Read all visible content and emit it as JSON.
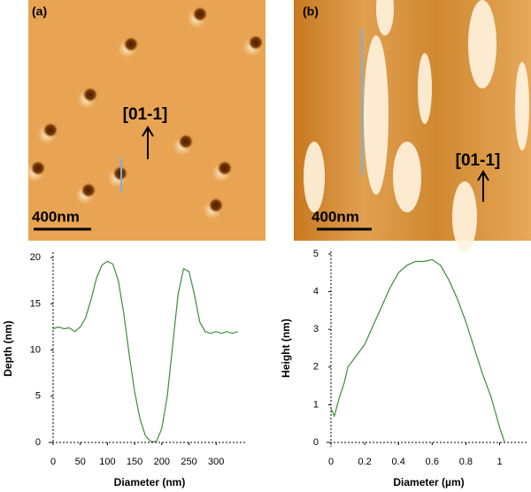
{
  "images": [
    {
      "label": "(a)",
      "direction": "[01-1]",
      "scale_bar": "400nm"
    },
    {
      "label": "(b)",
      "direction": "[01-1]",
      "scale_bar": "400nm"
    }
  ],
  "chart_data": [
    {
      "type": "line",
      "x_label": "Diameter (nm)",
      "y_label": "Depth (nm)",
      "color": "#3c8c3c",
      "x": [
        0,
        10,
        20,
        30,
        40,
        50,
        60,
        70,
        80,
        90,
        100,
        110,
        120,
        130,
        140,
        150,
        160,
        170,
        180,
        190,
        200,
        210,
        220,
        230,
        240,
        250,
        260,
        270,
        280,
        290,
        300,
        310,
        320,
        330,
        340
      ],
      "values": [
        12.3,
        12.5,
        12.3,
        12.4,
        12.0,
        12.5,
        13.5,
        15.5,
        17.8,
        19.2,
        19.6,
        19.3,
        17.5,
        14,
        9.5,
        5.5,
        2.5,
        0.7,
        0.1,
        0.1,
        1.5,
        5,
        10.5,
        16,
        18.8,
        18.5,
        16,
        13,
        12,
        11.8,
        12,
        11.8,
        12,
        11.8,
        12
      ],
      "xlim": [
        0,
        355
      ],
      "ylim": [
        0,
        20.3
      ],
      "xticks": [
        0,
        50,
        100,
        150,
        200,
        250,
        300
      ],
      "yticks": [
        0,
        5,
        10,
        15,
        20
      ]
    },
    {
      "type": "line",
      "x_label": "Diameter (µm)",
      "y_label": "Height (nm)",
      "color": "#3c8c3c",
      "x": [
        0,
        0.02,
        0.05,
        0.08,
        0.1,
        0.15,
        0.2,
        0.25,
        0.3,
        0.35,
        0.4,
        0.45,
        0.5,
        0.55,
        0.6,
        0.65,
        0.7,
        0.75,
        0.8,
        0.85,
        0.9,
        0.95,
        1.0,
        1.03
      ],
      "values": [
        0.9,
        0.7,
        1.2,
        1.6,
        2.0,
        2.3,
        2.6,
        3.1,
        3.6,
        4.1,
        4.5,
        4.7,
        4.8,
        4.8,
        4.85,
        4.7,
        4.3,
        3.8,
        3.2,
        2.5,
        1.8,
        1.2,
        0.4,
        0.0
      ],
      "xlim": [
        0,
        1.16
      ],
      "ylim": [
        0,
        5
      ],
      "xticks": [
        0,
        0.2,
        0.4,
        0.6,
        0.8,
        1
      ],
      "yticks": [
        0,
        1,
        2,
        3,
        4,
        5
      ]
    }
  ]
}
